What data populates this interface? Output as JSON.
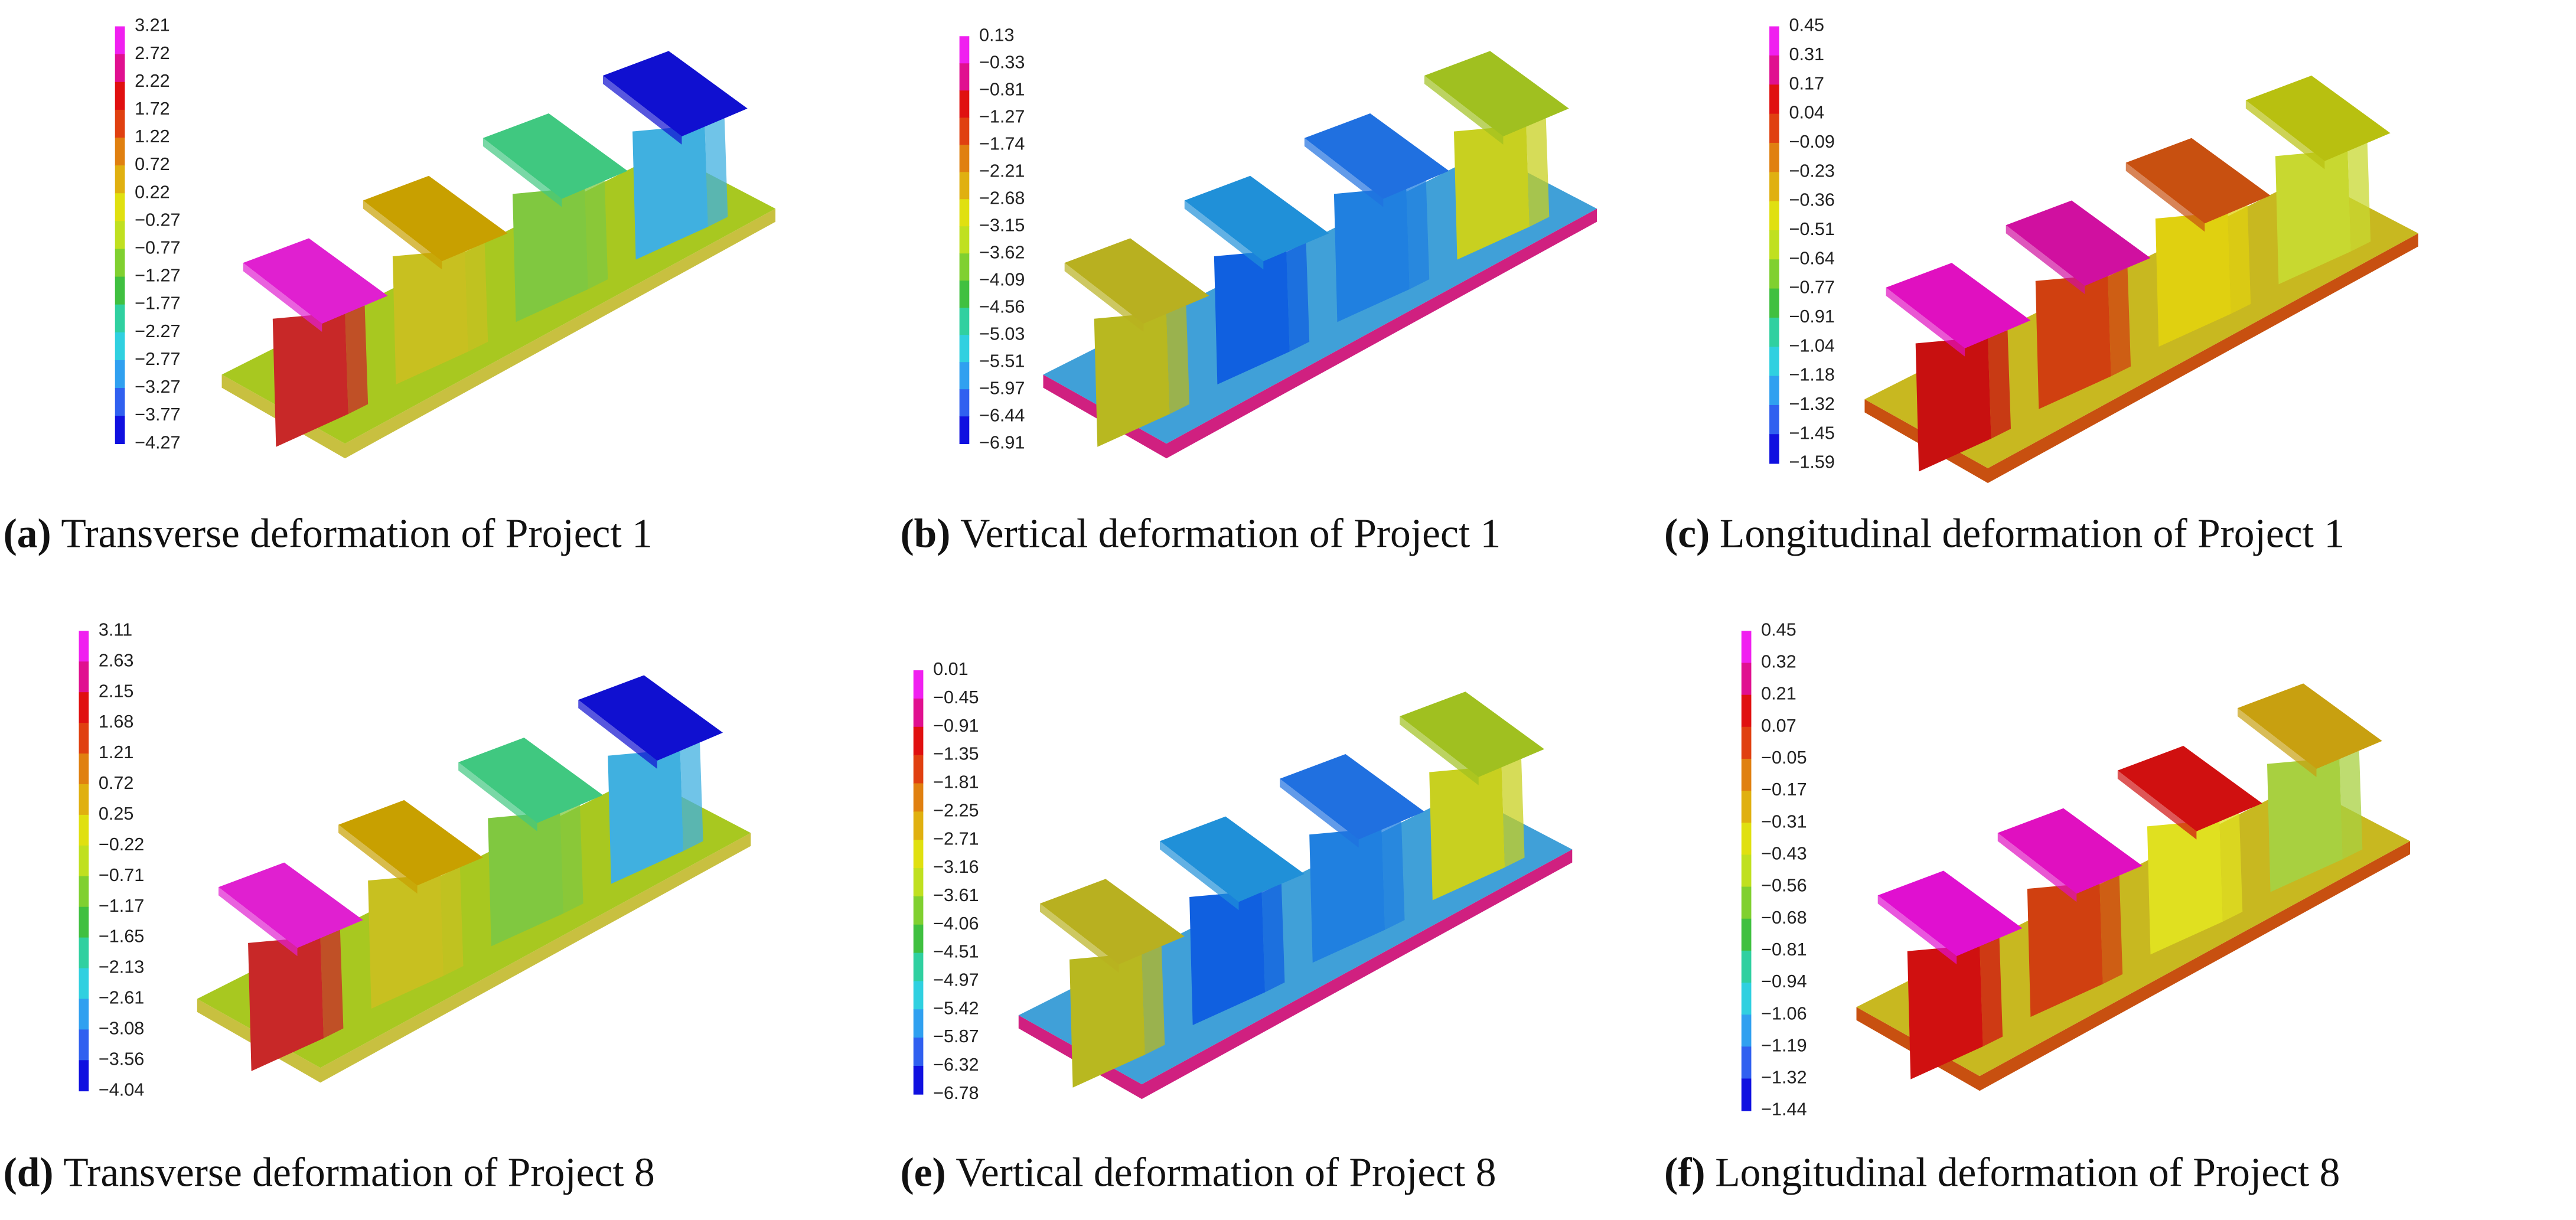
{
  "panels": [
    {
      "label": "(a)",
      "caption": "Transverse deformation of Project 1",
      "legend": [
        "3.21",
        "2.72",
        "2.22",
        "1.72",
        "1.22",
        "0.72",
        "0.22",
        "−0.27",
        "−0.77",
        "−1.27",
        "−1.77",
        "−2.27",
        "−2.77",
        "−3.27",
        "−3.77",
        "−4.27"
      ]
    },
    {
      "label": "(b)",
      "caption": "Vertical deformation of Project 1",
      "legend": [
        "0.13",
        "−0.33",
        "−0.81",
        "−1.27",
        "−1.74",
        "−2.21",
        "−2.68",
        "−3.15",
        "−3.62",
        "−4.09",
        "−4.56",
        "−5.03",
        "−5.51",
        "−5.97",
        "−6.44",
        "−6.91"
      ]
    },
    {
      "label": "(c)",
      "caption": "Longitudinal deformation of Project 1",
      "legend": [
        "0.45",
        "0.31",
        "0.17",
        "0.04",
        "−0.09",
        "−0.23",
        "−0.36",
        "−0.51",
        "−0.64",
        "−0.77",
        "−0.91",
        "−1.04",
        "−1.18",
        "−1.32",
        "−1.45",
        "−1.59"
      ]
    },
    {
      "label": "(d)",
      "caption": "Transverse deformation of Project 8",
      "legend": [
        "3.11",
        "2.63",
        "2.15",
        "1.68",
        "1.21",
        "0.72",
        "0.25",
        "−0.22",
        "−0.71",
        "−1.17",
        "−1.65",
        "−2.13",
        "−2.61",
        "−3.08",
        "−3.56",
        "−4.04"
      ]
    },
    {
      "label": "(e)",
      "caption": "Vertical deformation of Project 8",
      "legend": [
        "0.01",
        "−0.45",
        "−0.91",
        "−1.35",
        "−1.81",
        "−2.25",
        "−2.71",
        "−3.16",
        "−3.61",
        "−4.06",
        "−4.51",
        "−4.97",
        "−5.42",
        "−5.87",
        "−6.32",
        "−6.78"
      ]
    },
    {
      "label": "(f)",
      "caption": "Longitudinal deformation of Project 8",
      "legend": [
        "0.45",
        "0.32",
        "0.21",
        "0.07",
        "−0.05",
        "−0.17",
        "−0.31",
        "−0.43",
        "−0.56",
        "−0.68",
        "−0.81",
        "−0.94",
        "−1.06",
        "−1.19",
        "−1.32",
        "−1.44"
      ]
    }
  ]
}
